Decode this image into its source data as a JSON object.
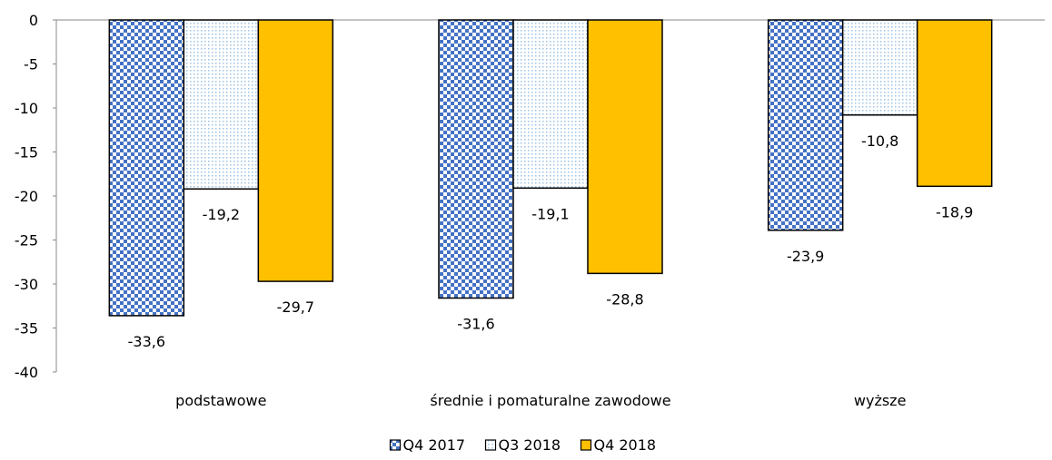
{
  "chart_data": {
    "type": "bar",
    "categories": [
      "podstawowe",
      "średnie i pomaturalne zawodowe",
      "wyższe"
    ],
    "series": [
      {
        "name": "Q4 2017",
        "values": [
          -33.6,
          -31.6,
          -23.9
        ],
        "labels": [
          "-33,6",
          "-31,6",
          "-23,9"
        ],
        "pattern": "checker",
        "color": "#4472c4"
      },
      {
        "name": "Q3 2018",
        "values": [
          -19.2,
          -19.1,
          -10.8
        ],
        "labels": [
          "-19,2",
          "-19,1",
          "-10,8"
        ],
        "pattern": "dots",
        "color": "#9dc3e6"
      },
      {
        "name": "Q4 2018",
        "values": [
          -29.7,
          -28.8,
          -18.9
        ],
        "labels": [
          "-29,7",
          "-28,8",
          "-18,9"
        ],
        "pattern": "solid",
        "color": "#ffc000"
      }
    ],
    "ylim": [
      -40,
      0
    ],
    "yticks": [
      0,
      -5,
      -10,
      -15,
      -20,
      -25,
      -30,
      -35,
      -40
    ],
    "legend": "bottom-center",
    "grid": false
  }
}
